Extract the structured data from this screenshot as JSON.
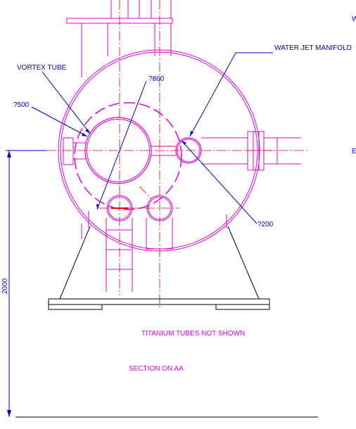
{
  "labels": {
    "vortex_tube": "VORTEX TUBE",
    "dia_860": "?860",
    "dia_500": "?500",
    "water_jet_manifold": "WATER JET MANIFOLD",
    "dia_200": "?200",
    "height_2000": "2000",
    "titanium_note": "TITANIUM TUBES NOT SHOWN",
    "section_title": "SECTION ON AA",
    "edge_top_right": "W",
    "edge_mid_right": "E"
  },
  "colors": {
    "geometry": "#e000e0",
    "centerline": "#e00000",
    "dimension": "#0000cc",
    "outline": "#000000",
    "note_text": "#e000e0",
    "background": "#ffffff"
  }
}
